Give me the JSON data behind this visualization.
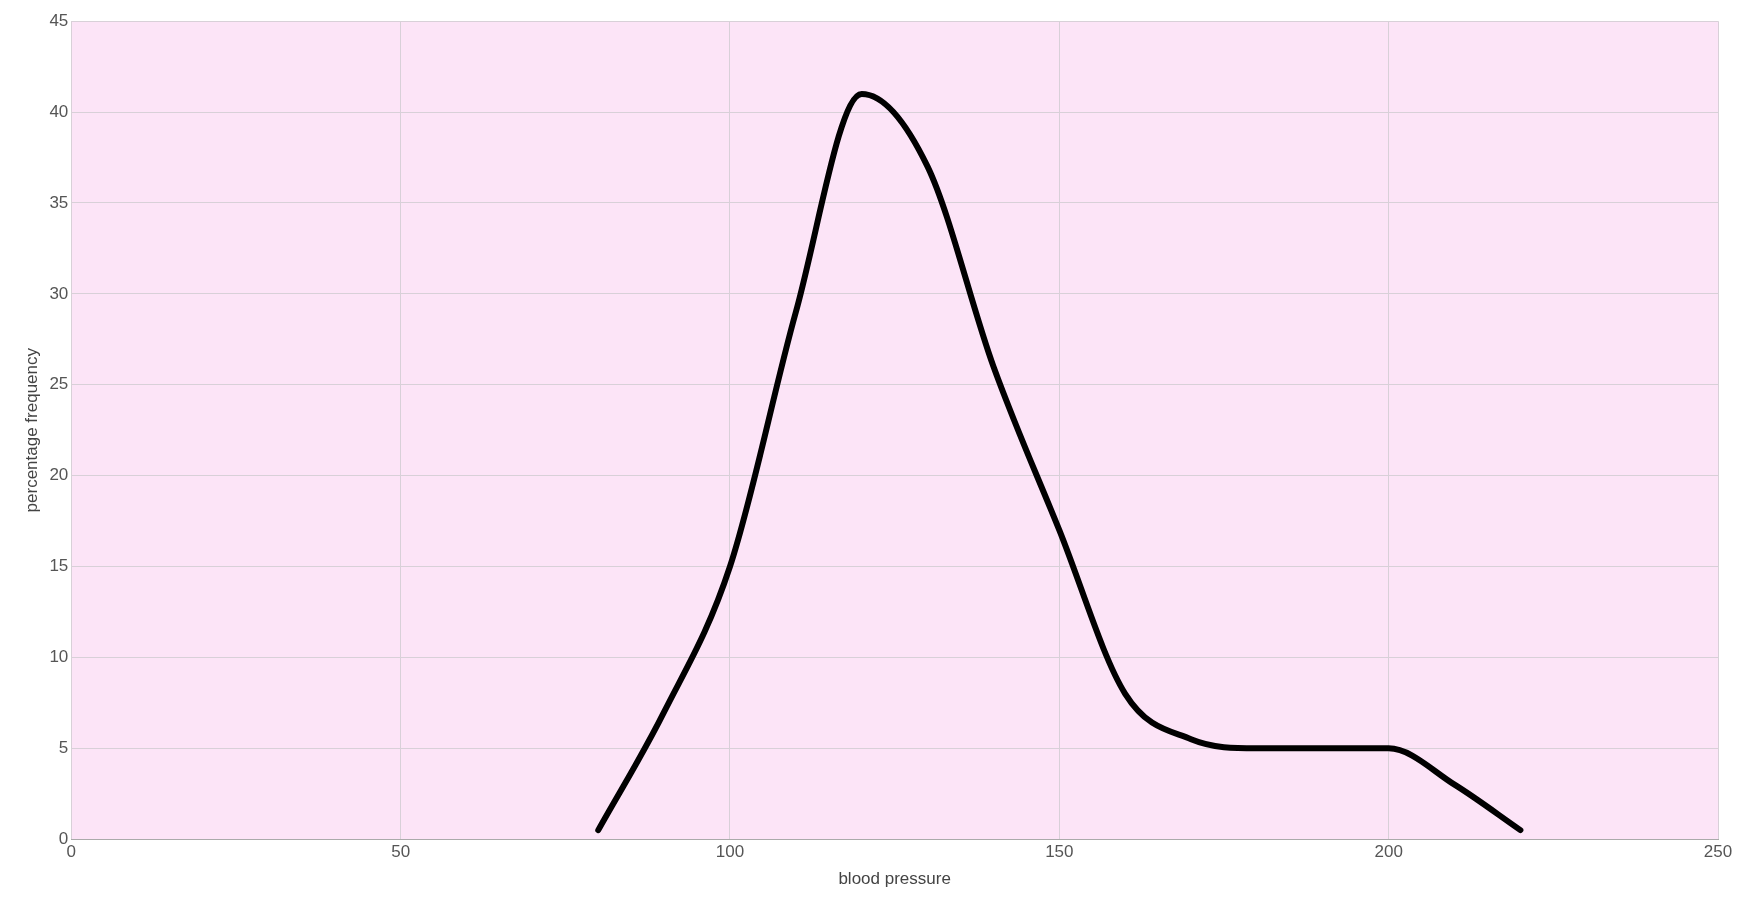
{
  "chart_data": {
    "type": "line",
    "xlabel": "blood pressure",
    "ylabel": "percentage frequency",
    "x": [
      80,
      90,
      100,
      110,
      120,
      130,
      140,
      150,
      160,
      170,
      180,
      190,
      200,
      210,
      220
    ],
    "series": [
      {
        "color": "#000000",
        "values": [
          0.5,
          7,
          15,
          29,
          41,
          37,
          26,
          17,
          8,
          5.5,
          5,
          5,
          5,
          3,
          0.5
        ]
      }
    ],
    "xlim": [
      0,
      250
    ],
    "xticks": [
      0,
      50,
      100,
      150,
      200,
      250
    ],
    "ylim": [
      0,
      45
    ],
    "yticks": [
      0,
      5,
      10,
      15,
      20,
      25,
      30,
      35,
      40,
      45
    ],
    "grid": true,
    "legend": false,
    "marker": "none",
    "line_style": "solid"
  }
}
